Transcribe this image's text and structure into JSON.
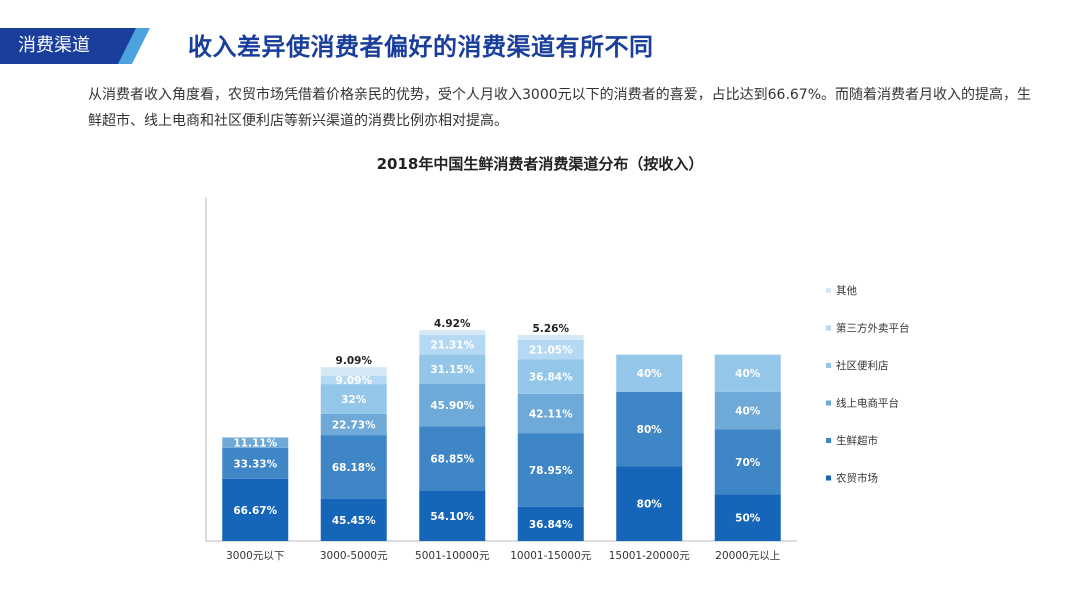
{
  "header": {
    "section_label": "消费渠道",
    "title": "收入差异使消费者偏好的消费渠道有所不同",
    "description": "从消费者收入角度看，农贸市场凭借着价格亲民的优势，受个人月收入3000元以下的消费者的喜爱，占比达到66.67%。而随着消费者月收入的提高，生鲜超市、线上电商和社区便利店等新兴渠道的消费比例亦相对提高。"
  },
  "colors": {
    "accent": "#1a3e9c",
    "series": [
      "#1565b8",
      "#3f86c6",
      "#6ea9d8",
      "#94c6ea",
      "#b6d9f3",
      "#d5e8f6"
    ]
  },
  "chart_data": {
    "type": "bar",
    "stacked": true,
    "title": "2018年中国生鲜消费者消费渠道分布（按收入）",
    "categories": [
      "3000元以下",
      "3000-5000元",
      "5001-10000元",
      "10001-15000元",
      "15001-20000元",
      "20000元以上"
    ],
    "series": [
      {
        "name": "农贸市场",
        "values": [
          66.67,
          45.45,
          54.1,
          36.84,
          80,
          50
        ],
        "labels": [
          "66.67%",
          "45.45%",
          "54.10%",
          "36.84%",
          "80%",
          "50%"
        ]
      },
      {
        "name": "生鲜超市",
        "values": [
          33.33,
          68.18,
          68.85,
          78.95,
          80,
          70
        ],
        "labels": [
          "33.33%",
          "68.18%",
          "68.85%",
          "78.95%",
          "80%",
          "70%"
        ]
      },
      {
        "name": "线上电商平台",
        "values": [
          11.11,
          22.73,
          45.9,
          42.11,
          0,
          40
        ],
        "labels": [
          "11.11%",
          "22.73%",
          "45.90%",
          "42.11%",
          "",
          "40%"
        ]
      },
      {
        "name": "社区便利店",
        "values": [
          0,
          32,
          31.15,
          36.84,
          40,
          40
        ],
        "labels": [
          "",
          "32%",
          "31.15%",
          "36.84%",
          "40%",
          "40%"
        ]
      },
      {
        "name": "第三方外卖平台",
        "values": [
          0,
          9.09,
          21.31,
          21.05,
          0,
          0
        ],
        "labels": [
          "",
          "9.09%",
          "21.31%",
          "21.05%",
          "",
          ""
        ]
      },
      {
        "name": "其他",
        "values": [
          0,
          9.09,
          4.92,
          5.26,
          0,
          0
        ],
        "labels": [
          "",
          "9.09%",
          "4.92%",
          "5.26%",
          "",
          ""
        ]
      }
    ],
    "legend_position": "right",
    "legend_order": [
      "其他",
      "第三方外卖平台",
      "社区便利店",
      "线上电商平台",
      "生鲜超市",
      "农贸市场"
    ],
    "grid": false
  }
}
